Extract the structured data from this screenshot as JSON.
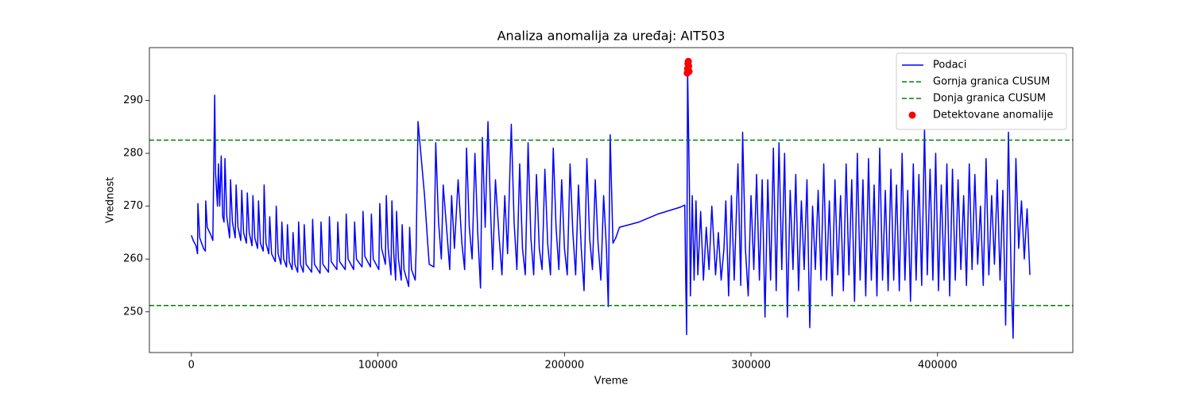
{
  "chart_data": {
    "type": "line",
    "title": "Analiza anomalija za uređaj: AIT503",
    "xlabel": "Vreme",
    "ylabel": "Vrednost",
    "xlim": [
      -22500,
      472500
    ],
    "xticks": [
      0,
      100000,
      200000,
      300000,
      400000
    ],
    "ylim": [
      242.3,
      300.0
    ],
    "yticks": [
      250,
      260,
      270,
      280,
      290
    ],
    "grid": false,
    "legend": "upper right",
    "series": [
      {
        "type": "line",
        "name": "Podaci",
        "color": "#0000ff",
        "x": [
          0,
          1000,
          2500,
          3300,
          3500,
          4500,
          6500,
          7500,
          7700,
          8500,
          10500,
          11500,
          12500,
          13000,
          14000,
          14500,
          15200,
          16000,
          16800,
          17500,
          18000,
          19000,
          20500,
          21000,
          22000,
          23500,
          24000,
          25000,
          26500,
          27000,
          28000,
          29500,
          30000,
          31000,
          32500,
          33000,
          34000,
          35500,
          36000,
          37000,
          38500,
          39000,
          40000,
          41500,
          42000,
          43000,
          45000,
          45500,
          46500,
          48000,
          48500,
          49500,
          51000,
          51500,
          52500,
          54000,
          54500,
          55500,
          57000,
          57500,
          58500,
          60000,
          60500,
          61500,
          64500,
          65000,
          66000,
          69000,
          69500,
          70500,
          73500,
          74000,
          75000,
          78000,
          78500,
          79500,
          82500,
          83000,
          84000,
          87000,
          87500,
          88500,
          91500,
          92000,
          93000,
          96000,
          96500,
          97500,
          100500,
          101000,
          102000,
          104000,
          104500,
          105500,
          107000,
          107500,
          108500,
          109500,
          110000,
          111000,
          112500,
          113000,
          114000,
          116500,
          117000,
          118000,
          120000,
          120500,
          121500,
          123000,
          125000,
          126500,
          127500,
          130000,
          131000,
          132500,
          134000,
          135000,
          137000,
          138500,
          139500,
          141000,
          143000,
          145000,
          146500,
          147500,
          149000,
          150500,
          152000,
          153500,
          155000,
          156000,
          157500,
          159000,
          160500,
          161500,
          163000,
          165000,
          166500,
          168000,
          169500,
          171500,
          173000,
          174500,
          176000,
          177500,
          179000,
          180500,
          182000,
          183500,
          185000,
          186500,
          188000,
          189500,
          191000,
          192500,
          194000,
          195500,
          197000,
          198500,
          200000,
          201500,
          203000,
          204500,
          206000,
          207500,
          209000,
          210500,
          212000,
          213500,
          215000,
          216500,
          218000,
          219500,
          221000,
          222500,
          223500,
          224500,
          226000,
          227500,
          229500,
          240000,
          250000,
          262000,
          264500,
          265000,
          265500,
          266000,
          267000,
          267500,
          268500,
          269500,
          270500,
          271500,
          273000,
          274500,
          276000,
          277500,
          279000,
          281000,
          282500,
          284000,
          285500,
          286500,
          288000,
          289500,
          291000,
          293000,
          294500,
          295500,
          297000,
          298500,
          300000,
          301500,
          303000,
          304500,
          306000,
          307500,
          309000,
          310500,
          312000,
          313500,
          315000,
          316500,
          318000,
          319500,
          321000,
          322500,
          324000,
          325500,
          327000,
          328500,
          330000,
          331500,
          333000,
          334500,
          336000,
          337500,
          339000,
          340500,
          342000,
          343500,
          345000,
          346500,
          348000,
          349500,
          351000,
          352500,
          354000,
          355500,
          357000,
          358500,
          360000,
          361500,
          363000,
          364500,
          366000,
          367500,
          369000,
          370500,
          372000,
          373500,
          375000,
          376500,
          378000,
          379500,
          381000,
          382500,
          384000,
          385500,
          387000,
          388500,
          390000,
          391500,
          393000,
          394500,
          396000,
          397500,
          399000,
          400500,
          402000,
          403500,
          405000,
          406500,
          408000,
          409500,
          411000,
          412500,
          414000,
          415500,
          417000,
          418500,
          420000,
          421500,
          423000,
          424500,
          426000,
          427500,
          429000,
          430500,
          432000,
          433500,
          435000,
          436500,
          438000,
          439500,
          440500,
          442000,
          443500,
          445000,
          446500,
          448000,
          449500
        ],
        "values": [
          264.5,
          263.5,
          262.5,
          261,
          270.5,
          264,
          262,
          261.5,
          271,
          266,
          264.5,
          263.5,
          291,
          276,
          270,
          278,
          270,
          279.5,
          268,
          267,
          279,
          268,
          264,
          275,
          267,
          264,
          274,
          266,
          263.5,
          273,
          265,
          263,
          272.5,
          265,
          262.5,
          272,
          264,
          262,
          271,
          263,
          261.5,
          274,
          263,
          261,
          268,
          261,
          259.5,
          270,
          261,
          259,
          267,
          260,
          258.5,
          266.5,
          259.5,
          258,
          265,
          259,
          257.5,
          267,
          259,
          257.5,
          266.5,
          259,
          257.5,
          267.5,
          259,
          257.3,
          267,
          259,
          257.5,
          268,
          259.5,
          258,
          267,
          259.5,
          258,
          268.5,
          260,
          258,
          267,
          260,
          258.5,
          269,
          260.5,
          258.5,
          268.5,
          260,
          258,
          270.5,
          262,
          259,
          272,
          262,
          257,
          271,
          261,
          256,
          269,
          260,
          256,
          266.5,
          258,
          254.8,
          266,
          258,
          256,
          262,
          286,
          280,
          272,
          264,
          259,
          258.5,
          282,
          267,
          260,
          274,
          265,
          258,
          272,
          262,
          275,
          263,
          258,
          281,
          266,
          260,
          280,
          265,
          254.5,
          283,
          266,
          286,
          268,
          258,
          275,
          264,
          257,
          272,
          261,
          285.5,
          267,
          258,
          278,
          262,
          257,
          282,
          264,
          257,
          276,
          262,
          258,
          277,
          263,
          257,
          281,
          266,
          258,
          275,
          262,
          257,
          278,
          265,
          257,
          274,
          262,
          254,
          279,
          264,
          258,
          275,
          263,
          256,
          272,
          262,
          251,
          283.5,
          263,
          264,
          266,
          267,
          268.5,
          269.8,
          270.2,
          256,
          245.7,
          296,
          273,
          253,
          272,
          256,
          271,
          257,
          269,
          256,
          266,
          258,
          270,
          257,
          265,
          256,
          262,
          271,
          253,
          272,
          256,
          278,
          255,
          284,
          262,
          253,
          272,
          258,
          276,
          256,
          275,
          249,
          275,
          256,
          281,
          254,
          282,
          258,
          280,
          249,
          273,
          258,
          276,
          254,
          271,
          258,
          275,
          247,
          270,
          258,
          273,
          256,
          278,
          256,
          271,
          253,
          275,
          257,
          272,
          254,
          278,
          257,
          275,
          252,
          280,
          256,
          275,
          253,
          279,
          256,
          274,
          253,
          281,
          256,
          273,
          254,
          277,
          256,
          274,
          254,
          280,
          256,
          273,
          252,
          278,
          256,
          276,
          255,
          284.5,
          257,
          277,
          256,
          280,
          254,
          274,
          256,
          278,
          253,
          277,
          256,
          275,
          258,
          272,
          255,
          278,
          258,
          276,
          259,
          270,
          255,
          279,
          257,
          272,
          259,
          275,
          256,
          273,
          247.5,
          284,
          256,
          245,
          279,
          262,
          271,
          260,
          269.5,
          257
        ]
      },
      {
        "type": "hline",
        "name": "Gornja granica CUSUM",
        "color": "#008000",
        "value": 282.5
      },
      {
        "type": "hline",
        "name": "Donja granica CUSUM",
        "color": "#008000",
        "value": 251.2
      },
      {
        "type": "scatter",
        "name": "Detektovane anomalije",
        "color": "#ff0000",
        "x": [
          265800,
          266000,
          266200,
          266400,
          266600,
          266800
        ],
        "values": [
          295.2,
          296,
          297,
          297.4,
          296.5,
          295.5
        ]
      }
    ]
  }
}
